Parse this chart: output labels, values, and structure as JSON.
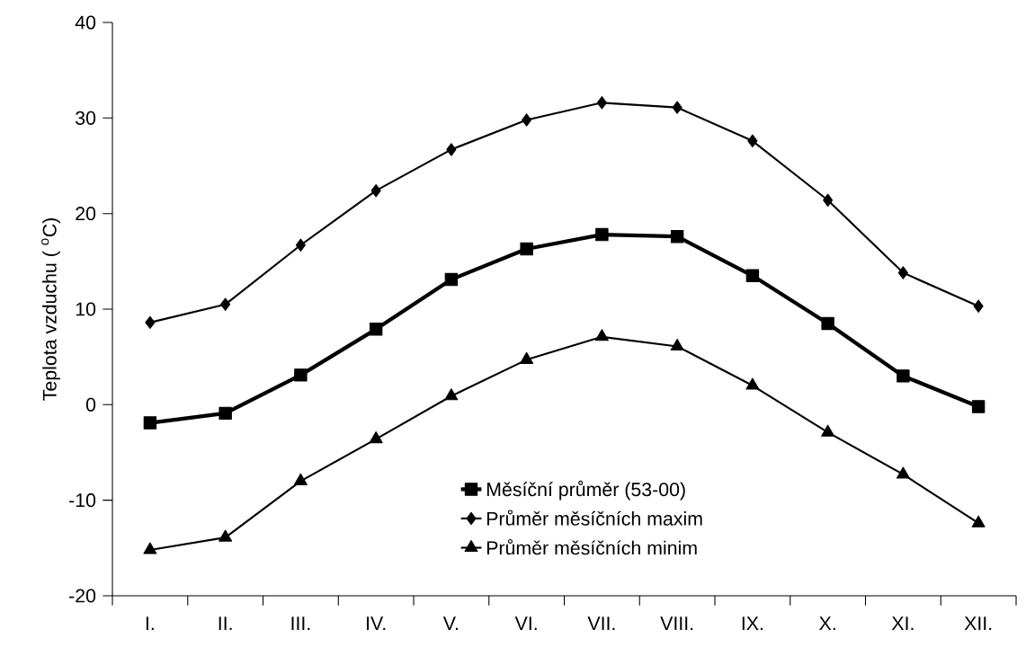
{
  "chart_data": {
    "type": "line",
    "ylabel": "Teplota vzduchu ( $^{o}$C)",
    "categories": [
      "I.",
      "II.",
      "III.",
      "IV.",
      "V.",
      "VI.",
      "VII.",
      "VIII.",
      "IX.",
      "X.",
      "XI.",
      "XII."
    ],
    "series": [
      {
        "name": "Měsíční průměr (53-00)",
        "color": "#000000",
        "marker": "square",
        "values": [
          -1.9,
          -0.9,
          3.1,
          7.9,
          13.1,
          16.3,
          17.8,
          17.6,
          13.5,
          8.5,
          3.0,
          -0.2
        ]
      },
      {
        "name": "Průměr měsíčních maxim",
        "color": "#000000",
        "marker": "diamond",
        "values": [
          8.6,
          10.5,
          16.7,
          22.4,
          26.7,
          29.8,
          31.6,
          31.1,
          27.6,
          21.4,
          13.8,
          10.3
        ]
      },
      {
        "name": "Průměr měsíčních minim",
        "color": "#000000",
        "marker": "triangle",
        "values": [
          -15.2,
          -13.9,
          -8.0,
          -3.6,
          0.9,
          4.7,
          7.1,
          6.1,
          2.0,
          -2.9,
          -7.3,
          -12.4
        ]
      }
    ],
    "ylim": [
      -20,
      40
    ],
    "yticks": [
      -20,
      -10,
      0,
      10,
      20,
      30,
      40
    ],
    "grid": false,
    "legend": "bottom",
    "line_style": "solid"
  }
}
